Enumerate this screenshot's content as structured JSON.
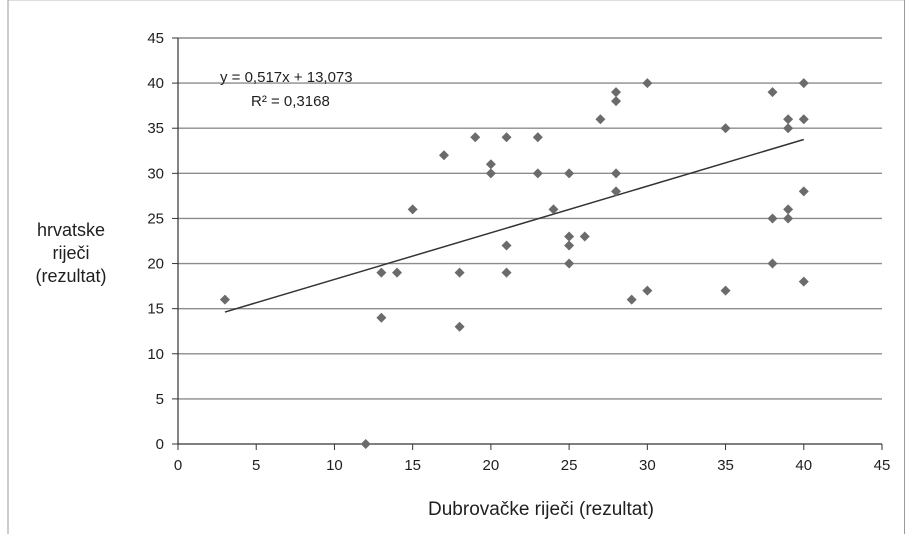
{
  "chart_data": {
    "type": "scatter",
    "xlabel": "Dubrovačke riječi (rezultat)",
    "ylabel": [
      "hrvatske",
      "riječi",
      "(rezultat)"
    ],
    "xlim": [
      0,
      45
    ],
    "ylim": [
      0,
      45
    ],
    "x_ticks": [
      "0",
      "5",
      "10",
      "15",
      "20",
      "25",
      "30",
      "35",
      "40",
      "45"
    ],
    "y_ticks": [
      "0",
      "5",
      "10",
      "15",
      "20",
      "25",
      "30",
      "35",
      "40",
      "45"
    ],
    "grid": "horizontal",
    "marker": "diamond",
    "colors": {
      "marker": "#6b6b6b",
      "grid": "#8c8c8c",
      "trendline": "#333333"
    },
    "points": [
      {
        "x": 3,
        "y": 16
      },
      {
        "x": 12,
        "y": 0
      },
      {
        "x": 13,
        "y": 19
      },
      {
        "x": 13,
        "y": 14
      },
      {
        "x": 14,
        "y": 19
      },
      {
        "x": 15,
        "y": 26
      },
      {
        "x": 17,
        "y": 32
      },
      {
        "x": 18,
        "y": 19
      },
      {
        "x": 18,
        "y": 13
      },
      {
        "x": 19,
        "y": 34
      },
      {
        "x": 20,
        "y": 31
      },
      {
        "x": 20,
        "y": 30
      },
      {
        "x": 21,
        "y": 34
      },
      {
        "x": 21,
        "y": 22
      },
      {
        "x": 21,
        "y": 19
      },
      {
        "x": 23,
        "y": 34
      },
      {
        "x": 23,
        "y": 30
      },
      {
        "x": 24,
        "y": 26
      },
      {
        "x": 25,
        "y": 30
      },
      {
        "x": 25,
        "y": 23
      },
      {
        "x": 25,
        "y": 22
      },
      {
        "x": 25,
        "y": 20
      },
      {
        "x": 26,
        "y": 23
      },
      {
        "x": 27,
        "y": 36
      },
      {
        "x": 28,
        "y": 39
      },
      {
        "x": 28,
        "y": 38
      },
      {
        "x": 28,
        "y": 30
      },
      {
        "x": 28,
        "y": 28
      },
      {
        "x": 29,
        "y": 16
      },
      {
        "x": 30,
        "y": 40
      },
      {
        "x": 30,
        "y": 17
      },
      {
        "x": 35,
        "y": 35
      },
      {
        "x": 35,
        "y": 17
      },
      {
        "x": 38,
        "y": 39
      },
      {
        "x": 38,
        "y": 25
      },
      {
        "x": 38,
        "y": 20
      },
      {
        "x": 39,
        "y": 36
      },
      {
        "x": 39,
        "y": 35
      },
      {
        "x": 39,
        "y": 26
      },
      {
        "x": 39,
        "y": 25
      },
      {
        "x": 40,
        "y": 40
      },
      {
        "x": 40,
        "y": 36
      },
      {
        "x": 40,
        "y": 28
      },
      {
        "x": 40,
        "y": 18
      }
    ],
    "trendline": {
      "slope": 0.517,
      "intercept": 13.073,
      "x_range": [
        3,
        40
      ],
      "equation": "y = 0,517x + 13,073",
      "r_squared": "R² = 0,3168"
    }
  }
}
